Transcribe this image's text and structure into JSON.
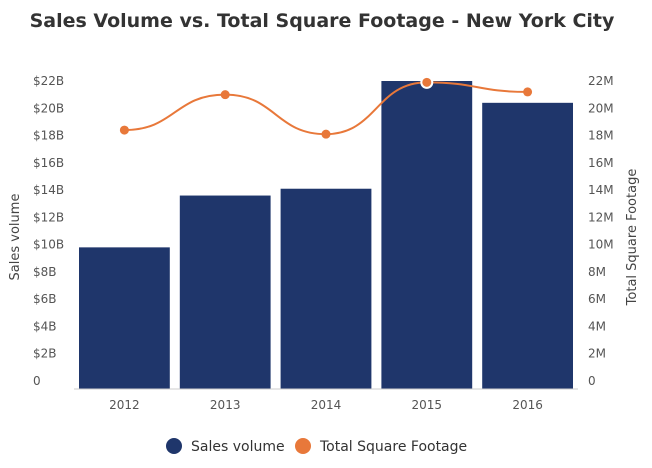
{
  "chart_data": {
    "type": "bar",
    "title": "Sales Volume vs. Total Square Footage - New York City",
    "categories": [
      "2012",
      "2013",
      "2014",
      "2015",
      "2016"
    ],
    "series": [
      {
        "name": "Sales volume",
        "type": "bar",
        "axis": "left",
        "color": "#1f366b",
        "values": [
          9.8,
          13.6,
          14.1,
          22.0,
          20.4
        ]
      },
      {
        "name": "Total Square Footage",
        "type": "line",
        "axis": "right",
        "color": "#e8783a",
        "values": [
          18.4,
          21.0,
          18.1,
          21.9,
          21.2
        ],
        "highlighted_point": "2015"
      }
    ],
    "y_left": {
      "label": "Sales volume",
      "ticks": [
        "0",
        "$2B",
        "$4B",
        "$6B",
        "$8B",
        "$10B",
        "$12B",
        "$14B",
        "$16B",
        "$18B",
        "$20B",
        "$22B"
      ],
      "ylim": [
        0,
        22
      ],
      "unit": "billions USD"
    },
    "y_right": {
      "label": "Total Square Footage",
      "ticks": [
        "0",
        "2M",
        "4M",
        "6M",
        "8M",
        "10M",
        "12M",
        "14M",
        "16M",
        "18M",
        "20M",
        "22M"
      ],
      "ylim": [
        0,
        22
      ],
      "unit": "millions sq ft"
    },
    "grid": false,
    "legend": {
      "position": "bottom-center",
      "items": [
        {
          "label": "Sales volume",
          "color": "#1f366b"
        },
        {
          "label": "Total Square Footage",
          "color": "#e8783a"
        }
      ]
    }
  }
}
